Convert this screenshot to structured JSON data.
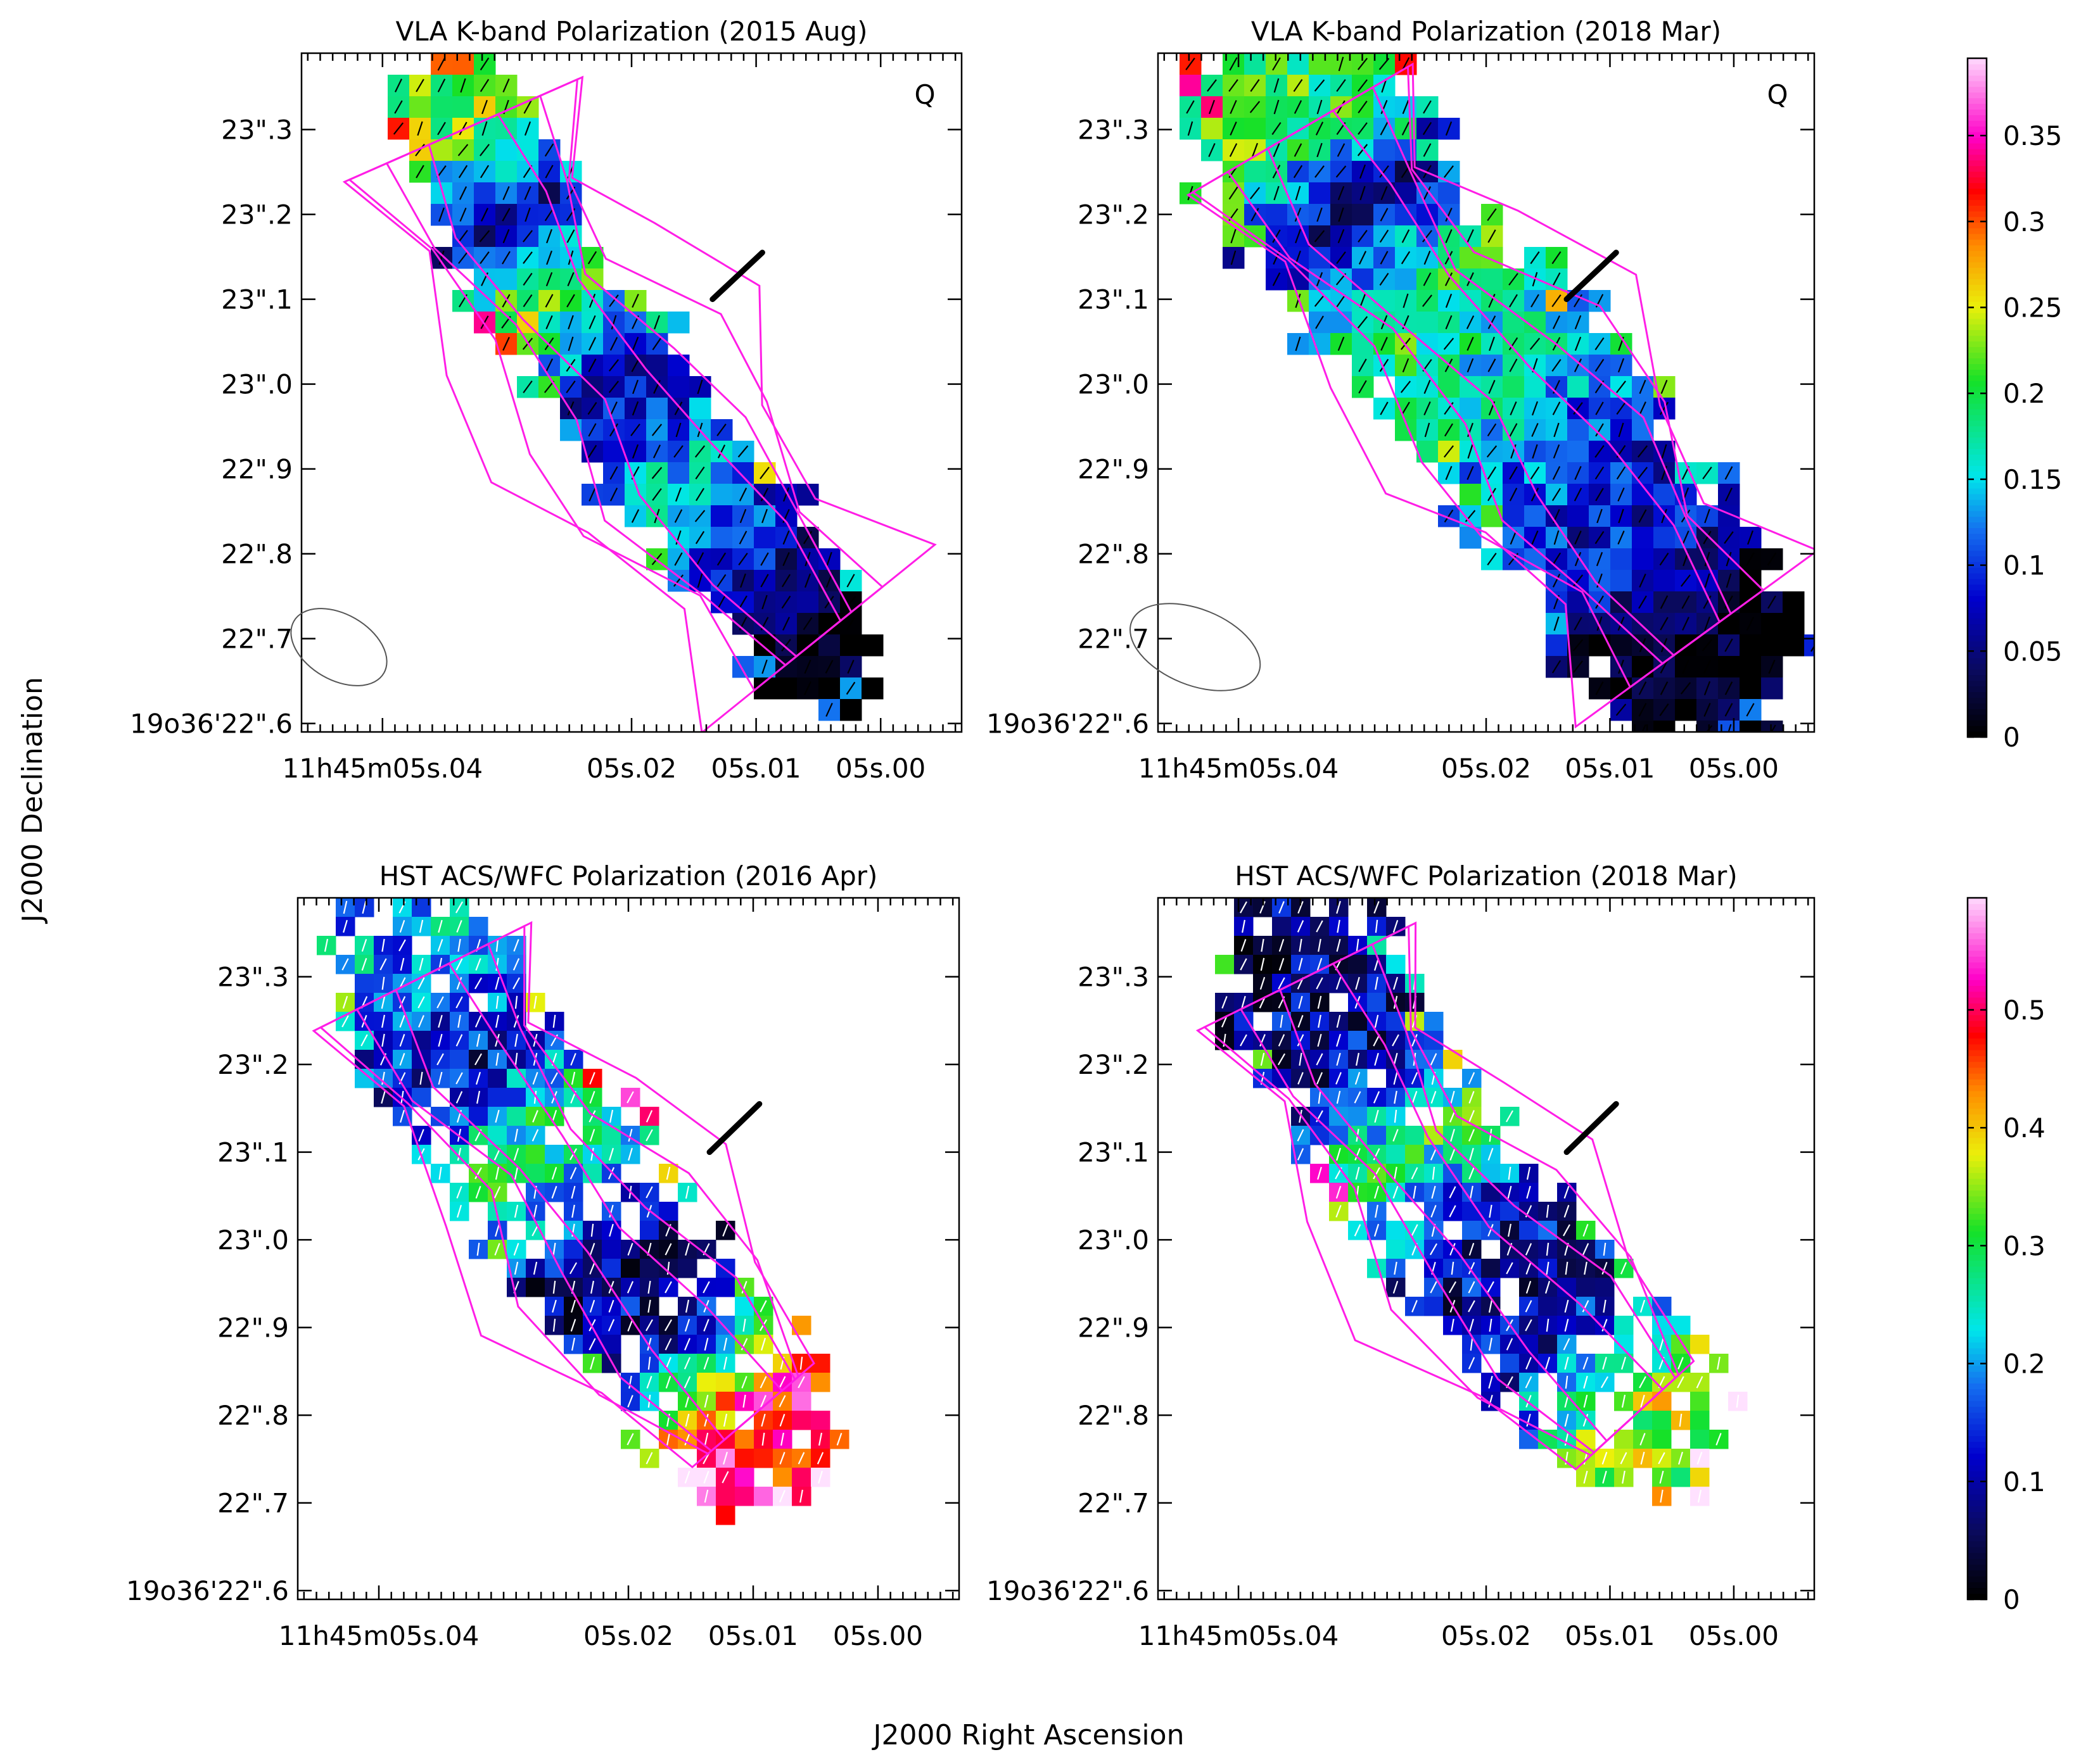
{
  "figure": {
    "x_axis_label": "J2000 Right Ascension",
    "y_axis_label": "J2000 Declination"
  },
  "colorbars": [
    {
      "ticks": [
        "0",
        "0.05",
        "0.1",
        "0.15",
        "0.2",
        "0.25",
        "0.3",
        "0.35"
      ],
      "values": [
        0,
        0.05,
        0.1,
        0.15,
        0.2,
        0.25,
        0.3,
        0.35
      ],
      "max": 0.395
    },
    {
      "ticks": [
        "0",
        "0.1",
        "0.2",
        "0.3",
        "0.4",
        "0.5"
      ],
      "values": [
        0,
        0.1,
        0.2,
        0.3,
        0.4,
        0.5
      ],
      "max": 0.595
    }
  ],
  "axes": {
    "ra_ticks": [
      "11h45m05s.04",
      "05s.02",
      "05s.01",
      "05s.00"
    ],
    "dec_ticks": [
      "19o36'22\".6",
      "22\".7",
      "22\".8",
      "22\".9",
      "23\".0",
      "23\".1",
      "23\".2",
      "23\".3"
    ]
  },
  "panels": [
    {
      "title": "VLA K-band Polarization (2015 Aug)",
      "stokes": "Q",
      "has_beam": true,
      "colorbar": 0,
      "vector_color": "#000000"
    },
    {
      "title": "VLA K-band Polarization (2018 Mar)",
      "stokes": "Q",
      "has_beam": true,
      "colorbar": 0,
      "vector_color": "#000000"
    },
    {
      "title": "HST ACS/WFC Polarization (2016 Apr)",
      "stokes": "",
      "has_beam": false,
      "colorbar": 1,
      "vector_color": "#ffffff"
    },
    {
      "title": "HST ACS/WFC Polarization (2018 Mar)",
      "stokes": "",
      "has_beam": false,
      "colorbar": 1,
      "vector_color": "#ffffff"
    }
  ],
  "chart_data": [
    {
      "type": "heatmap",
      "title": "VLA K-band Polarization (2015 Aug)",
      "xlabel": "J2000 Right Ascension",
      "ylabel": "J2000 Declination",
      "quantity": "fractional polarization",
      "colorbar_range": [
        0,
        0.395
      ],
      "ridge_profile": [
        {
          "dec": 23.3,
          "ra_sec": 5.0335,
          "frac_pol": 0.22
        },
        {
          "dec": 23.2,
          "ra_sec": 5.0305,
          "frac_pol": 0.06
        },
        {
          "dec": 23.1,
          "ra_sec": 5.0265,
          "frac_pol": 0.22
        },
        {
          "dec": 23.0,
          "ra_sec": 5.0205,
          "frac_pol": 0.06
        },
        {
          "dec": 22.9,
          "ra_sec": 5.0165,
          "frac_pol": 0.15
        },
        {
          "dec": 22.8,
          "ra_sec": 5.0105,
          "frac_pol": 0.08
        },
        {
          "dec": 22.7,
          "ra_sec": 5.005,
          "frac_pol": 0.0
        }
      ],
      "ra_range": [
        5.0465,
        4.9935
      ],
      "dec_range": [
        22.59,
        23.39
      ]
    },
    {
      "type": "heatmap",
      "title": "VLA K-band Polarization (2018 Mar)",
      "xlabel": "J2000 Right Ascension",
      "ylabel": "J2000 Declination",
      "quantity": "fractional polarization",
      "colorbar_range": [
        0,
        0.395
      ],
      "ridge_profile": [
        {
          "dec": 23.3,
          "ra_sec": 5.035,
          "frac_pol": 0.2
        },
        {
          "dec": 23.2,
          "ra_sec": 5.031,
          "frac_pol": 0.05
        },
        {
          "dec": 23.1,
          "ra_sec": 5.025,
          "frac_pol": 0.2
        },
        {
          "dec": 23.0,
          "ra_sec": 5.018,
          "frac_pol": 0.15
        },
        {
          "dec": 22.9,
          "ra_sec": 5.013,
          "frac_pol": 0.1
        },
        {
          "dec": 22.8,
          "ra_sec": 5.008,
          "frac_pol": 0.08
        },
        {
          "dec": 22.7,
          "ra_sec": 5.003,
          "frac_pol": 0.0
        }
      ],
      "ra_range": [
        5.0465,
        4.9935
      ],
      "dec_range": [
        22.59,
        23.39
      ]
    },
    {
      "type": "heatmap",
      "title": "HST ACS/WFC Polarization (2016 Apr)",
      "xlabel": "J2000 Right Ascension",
      "ylabel": "J2000 Declination",
      "quantity": "fractional polarization",
      "colorbar_range": [
        0,
        0.595
      ],
      "ridge_profile": [
        {
          "dec": 23.3,
          "ra_sec": 5.0365,
          "frac_pol": 0.2
        },
        {
          "dec": 23.2,
          "ra_sec": 5.033,
          "frac_pol": 0.1
        },
        {
          "dec": 23.1,
          "ra_sec": 5.027,
          "frac_pol": 0.3
        },
        {
          "dec": 23.0,
          "ra_sec": 5.022,
          "frac_pol": 0.08
        },
        {
          "dec": 22.9,
          "ra_sec": 5.016,
          "frac_pol": 0.1
        },
        {
          "dec": 22.8,
          "ra_sec": 5.01,
          "frac_pol": 0.5
        }
      ],
      "ra_range": [
        5.0465,
        4.9935
      ],
      "dec_range": [
        22.59,
        23.39
      ]
    },
    {
      "type": "heatmap",
      "title": "HST ACS/WFC Polarization (2018 Mar)",
      "xlabel": "J2000 Right Ascension",
      "ylabel": "J2000 Declination",
      "quantity": "fractional polarization",
      "colorbar_range": [
        0,
        0.595
      ],
      "ridge_profile": [
        {
          "dec": 23.3,
          "ra_sec": 5.0345,
          "frac_pol": 0.08
        },
        {
          "dec": 23.2,
          "ra_sec": 5.031,
          "frac_pol": 0.1
        },
        {
          "dec": 23.1,
          "ra_sec": 5.0265,
          "frac_pol": 0.3
        },
        {
          "dec": 23.0,
          "ra_sec": 5.021,
          "frac_pol": 0.1
        },
        {
          "dec": 22.9,
          "ra_sec": 5.0145,
          "frac_pol": 0.1
        },
        {
          "dec": 22.8,
          "ra_sec": 5.008,
          "frac_pol": 0.35
        }
      ],
      "ra_range": [
        5.0465,
        4.9935
      ],
      "dec_range": [
        22.59,
        23.39
      ]
    }
  ]
}
